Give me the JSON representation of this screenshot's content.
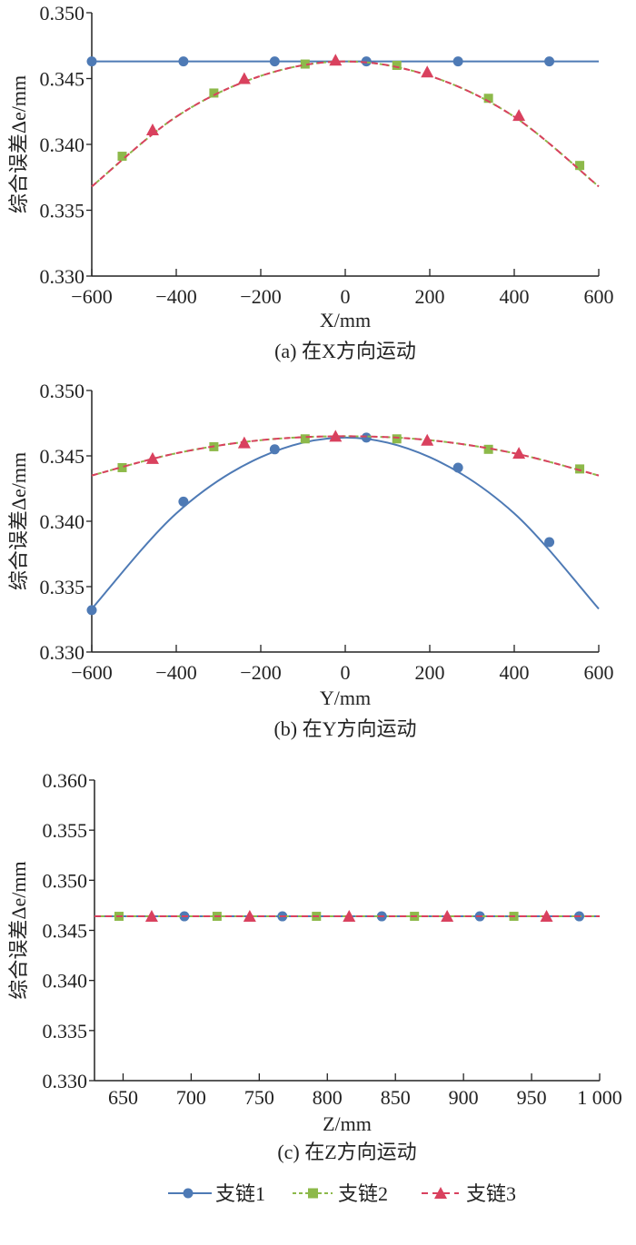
{
  "colors": {
    "series1": "#4e7ab5",
    "series2": "#8db94a",
    "series3": "#d9415e",
    "axis": "#222222"
  },
  "legend": {
    "items": [
      "支链1",
      "支链2",
      "支链3"
    ],
    "placement": "bottom-center"
  },
  "chart_data": [
    {
      "type": "line",
      "caption": "(a) 在X方向运动",
      "xlabel": "X/mm",
      "ylabel": "综合误差Δe/mm",
      "xlim": [
        -600,
        600
      ],
      "ylim": [
        0.33,
        0.35
      ],
      "xticks": [
        -600,
        -400,
        -200,
        0,
        200,
        400,
        600
      ],
      "xtick_labels": [
        "−600",
        "−400",
        "−200",
        "0",
        "200",
        "400",
        "600"
      ],
      "yticks": [
        0.33,
        0.335,
        0.34,
        0.345,
        0.35
      ],
      "ytick_labels": [
        "0.330",
        "0.335",
        "0.340",
        "0.345",
        "0.350"
      ],
      "series": [
        {
          "name": "支链1",
          "marker": "circle",
          "x": [
            -600,
            -383,
            -167,
            50,
            267,
            483
          ],
          "y": [
            0.3463,
            0.3463,
            0.3463,
            0.3463,
            0.3463,
            0.3463
          ],
          "curve_x": [
            -600,
            600
          ],
          "curve_y": [
            0.3463,
            0.3463
          ]
        },
        {
          "name": "支链2",
          "marker": "square",
          "x": [
            -528,
            -311,
            -95,
            122,
            339,
            555
          ],
          "y": [
            0.3391,
            0.3439,
            0.3461,
            0.346,
            0.3435,
            0.3384
          ],
          "curve_x": [
            -600,
            -400,
            -200,
            0,
            200,
            400,
            600
          ],
          "curve_y": [
            0.3368,
            0.3421,
            0.3452,
            0.3463,
            0.3452,
            0.3421,
            0.3368
          ]
        },
        {
          "name": "支链3",
          "marker": "triangle",
          "x": [
            -456,
            -239,
            -23,
            194,
            411
          ],
          "y": [
            0.3411,
            0.345,
            0.3464,
            0.3455,
            0.3422
          ],
          "curve_x": [
            -600,
            -400,
            -200,
            0,
            200,
            400,
            600
          ],
          "curve_y": [
            0.3368,
            0.3421,
            0.3452,
            0.3463,
            0.3452,
            0.3421,
            0.3368
          ]
        }
      ]
    },
    {
      "type": "line",
      "caption": "(b) 在Y方向运动",
      "xlabel": "Y/mm",
      "ylabel": "综合误差Δe/mm",
      "xlim": [
        -600,
        600
      ],
      "ylim": [
        0.33,
        0.35
      ],
      "xticks": [
        -600,
        -400,
        -200,
        0,
        200,
        400,
        600
      ],
      "xtick_labels": [
        "−600",
        "−400",
        "−200",
        "0",
        "200",
        "400",
        "600"
      ],
      "yticks": [
        0.33,
        0.335,
        0.34,
        0.345,
        0.35
      ],
      "ytick_labels": [
        "0.330",
        "0.335",
        "0.340",
        "0.345",
        "0.350"
      ],
      "series": [
        {
          "name": "支链1",
          "marker": "circle",
          "x": [
            -600,
            -383,
            -167,
            50,
            267,
            483
          ],
          "y": [
            0.3332,
            0.3415,
            0.3455,
            0.3464,
            0.3441,
            0.3384
          ],
          "curve_x": [
            -600,
            -400,
            -200,
            0,
            200,
            400,
            600
          ],
          "curve_y": [
            0.3333,
            0.3406,
            0.3449,
            0.3464,
            0.3449,
            0.3406,
            0.3333
          ]
        },
        {
          "name": "支链2",
          "marker": "square",
          "x": [
            -528,
            -311,
            -95,
            122,
            339,
            555
          ],
          "y": [
            0.3441,
            0.3457,
            0.3463,
            0.3463,
            0.3455,
            0.344
          ],
          "curve_x": [
            -600,
            -400,
            -200,
            0,
            200,
            400,
            600
          ],
          "curve_y": [
            0.3435,
            0.3452,
            0.3462,
            0.3465,
            0.3462,
            0.3452,
            0.3435
          ]
        },
        {
          "name": "支链3",
          "marker": "triangle",
          "x": [
            -456,
            -239,
            -23,
            194,
            411
          ],
          "y": [
            0.3448,
            0.346,
            0.3465,
            0.3462,
            0.3452
          ],
          "curve_x": [
            -600,
            -400,
            -200,
            0,
            200,
            400,
            600
          ],
          "curve_y": [
            0.3435,
            0.3452,
            0.3462,
            0.3465,
            0.3462,
            0.3452,
            0.3435
          ]
        }
      ]
    },
    {
      "type": "line",
      "caption": "(c) 在Z方向运动",
      "xlabel": "Z/mm",
      "ylabel": "综合误差Δe/mm",
      "xlim": [
        629,
        1000
      ],
      "ylim": [
        0.33,
        0.36
      ],
      "xticks": [
        650,
        700,
        750,
        800,
        850,
        900,
        950,
        1000
      ],
      "xtick_labels": [
        "650",
        "700",
        "750",
        "800",
        "850",
        "900",
        "950",
        "1 000"
      ],
      "yticks": [
        0.33,
        0.335,
        0.34,
        0.345,
        0.35,
        0.355,
        0.36
      ],
      "ytick_labels": [
        "0.330",
        "0.335",
        "0.340",
        "0.345",
        "0.350",
        "0.355",
        "0.360"
      ],
      "series": [
        {
          "name": "支链1",
          "marker": "circle",
          "x": [
            695,
            767,
            840,
            912,
            985
          ],
          "y": [
            0.3464,
            0.3464,
            0.3464,
            0.3464,
            0.3464
          ],
          "curve_x": [
            629,
            1000
          ],
          "curve_y": [
            0.3464,
            0.3464
          ]
        },
        {
          "name": "支链2",
          "marker": "square",
          "x": [
            647,
            719,
            792,
            864,
            937
          ],
          "y": [
            0.3464,
            0.3464,
            0.3464,
            0.3464,
            0.3464
          ],
          "curve_x": [
            629,
            1000
          ],
          "curve_y": [
            0.3464,
            0.3464
          ]
        },
        {
          "name": "支链3",
          "marker": "triangle",
          "x": [
            671,
            743,
            816,
            888,
            961
          ],
          "y": [
            0.3464,
            0.3464,
            0.3464,
            0.3464,
            0.3464
          ],
          "curve_x": [
            629,
            1000
          ],
          "curve_y": [
            0.3464,
            0.3464
          ]
        }
      ]
    }
  ]
}
